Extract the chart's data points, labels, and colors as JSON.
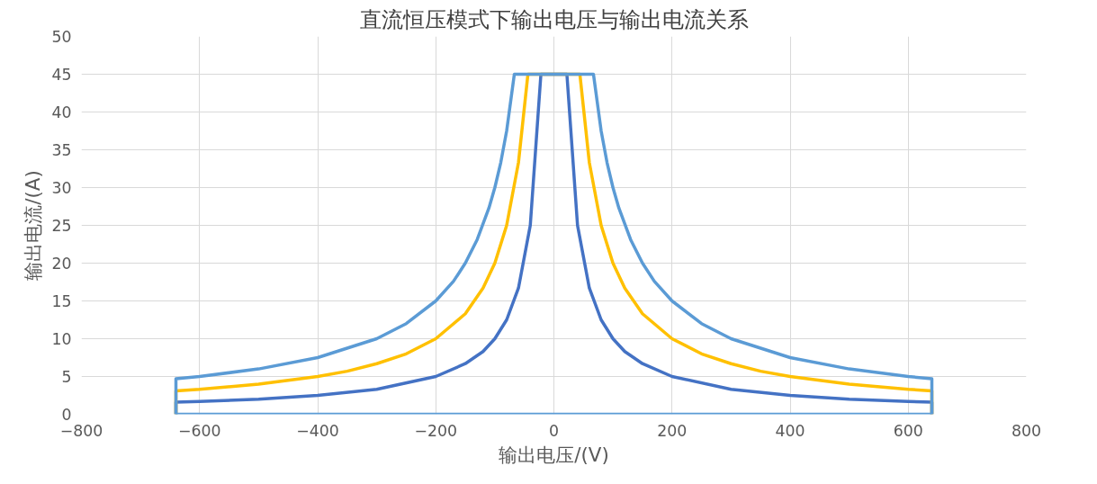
{
  "chart_data": {
    "type": "line",
    "title": "直流恒压模式下输出电压与输出电流关系",
    "xlabel": "输出电压/(V)",
    "ylabel": "输出电流/(A)",
    "xlim": [
      -800,
      800
    ],
    "ylim": [
      0,
      50
    ],
    "xticks": [
      -800,
      -600,
      -400,
      -200,
      0,
      200,
      400,
      600,
      800
    ],
    "yticks": [
      0,
      5,
      10,
      15,
      20,
      25,
      30,
      35,
      40,
      45,
      50
    ],
    "grid": true,
    "marker": "none",
    "line_style": "solid",
    "series": [
      {
        "color": "#4472c4",
        "x": [
          -640,
          -640,
          -600,
          -500,
          -400,
          -300,
          -200,
          -150,
          -120,
          -100,
          -80,
          -60,
          -40,
          -22,
          22,
          40,
          60,
          80,
          100,
          120,
          150,
          200,
          300,
          400,
          500,
          600,
          640,
          640
        ],
        "values": [
          0,
          1.6,
          1.7,
          2.0,
          2.5,
          3.3,
          5.0,
          6.7,
          8.3,
          10,
          12.5,
          16.7,
          25,
          45,
          45,
          25,
          16.7,
          12.5,
          10,
          8.3,
          6.7,
          5.0,
          3.3,
          2.5,
          2.0,
          1.7,
          1.6,
          0
        ]
      },
      {
        "color": "#ffc000",
        "x": [
          -640,
          -640,
          -600,
          -500,
          -400,
          -350,
          -300,
          -250,
          -200,
          -150,
          -120,
          -100,
          -80,
          -60,
          -44,
          44,
          60,
          80,
          100,
          120,
          150,
          200,
          250,
          300,
          350,
          400,
          500,
          600,
          640,
          640
        ],
        "values": [
          0,
          3.1,
          3.3,
          4.0,
          5.0,
          5.7,
          6.7,
          8.0,
          10,
          13.3,
          16.7,
          20,
          25,
          33.3,
          45,
          45,
          33.3,
          25,
          20,
          16.7,
          13.3,
          10,
          8.0,
          6.7,
          5.7,
          5.0,
          4.0,
          3.3,
          3.1,
          0
        ]
      },
      {
        "color": "#5b9bd5",
        "x": [
          -640,
          -640,
          -600,
          -500,
          -400,
          -300,
          -250,
          -200,
          -170,
          -150,
          -130,
          -110,
          -100,
          -90,
          -80,
          -67,
          67,
          80,
          90,
          100,
          110,
          130,
          150,
          170,
          200,
          250,
          300,
          400,
          500,
          600,
          640,
          640
        ],
        "values": [
          0,
          4.7,
          5.0,
          6.0,
          7.5,
          10,
          12,
          15,
          17.6,
          20,
          23.1,
          27.3,
          30,
          33.3,
          37.5,
          45,
          45,
          37.5,
          33.3,
          30,
          27.3,
          23.1,
          20,
          17.6,
          15,
          12,
          10,
          7.5,
          6.0,
          5.0,
          4.7,
          0
        ]
      },
      {
        "color": "#5b9bd5",
        "x": [
          -640,
          640
        ],
        "values": [
          0,
          0
        ]
      }
    ]
  }
}
